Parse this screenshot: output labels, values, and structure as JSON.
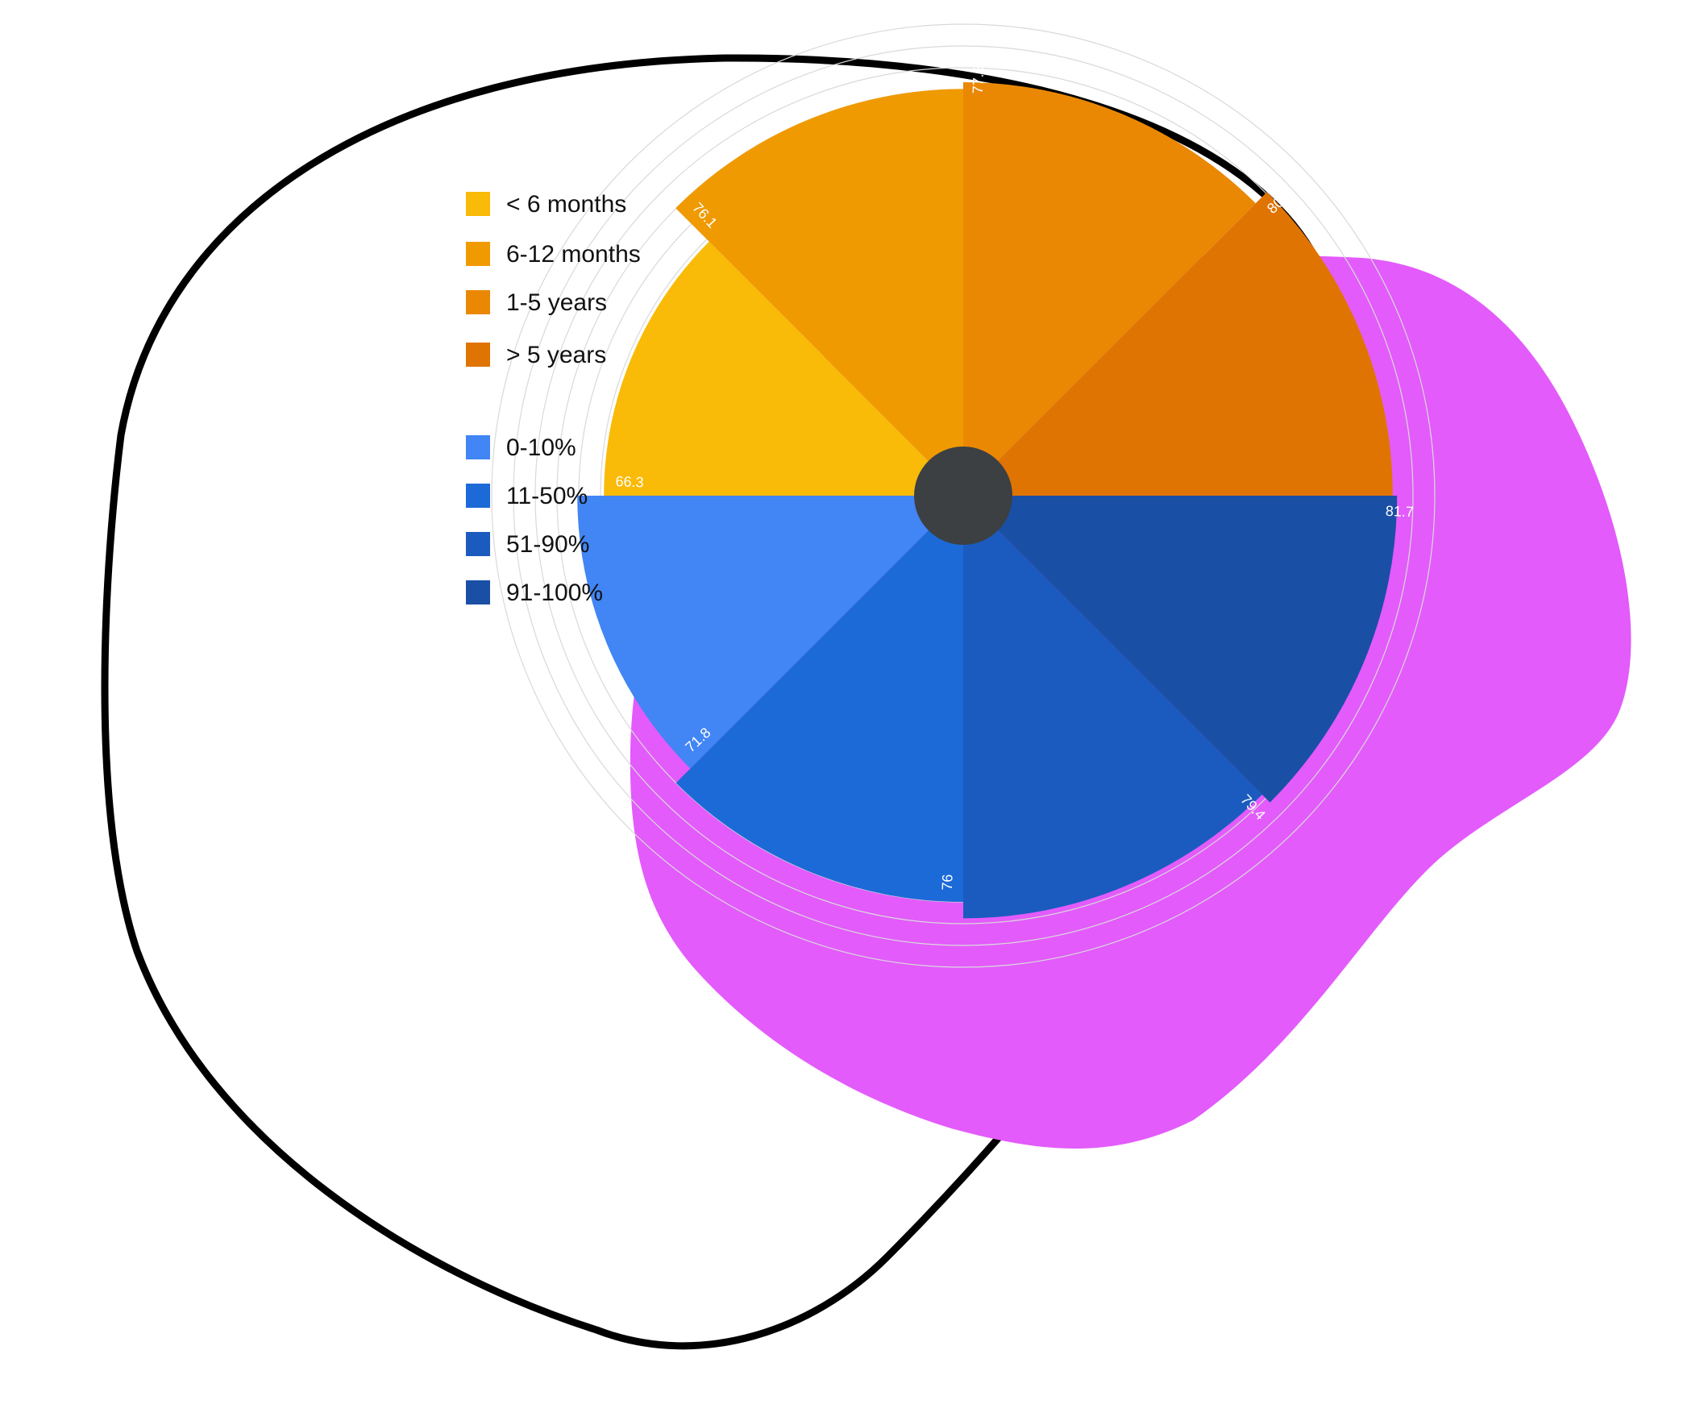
{
  "chart_data": {
    "type": "polar-area",
    "title": "",
    "groups": [
      {
        "name": "",
        "categories": [
          "< 6 months",
          "6-12 months",
          "1-5 years",
          "> 5 years"
        ],
        "values": [
          66.3,
          76.1,
          77.5,
          80.8
        ],
        "colors": [
          "#F9BA08",
          "#F09A02",
          "#EA8804",
          "#E07403"
        ]
      },
      {
        "name": "",
        "categories": [
          "0-10%",
          "11-50%",
          "51-90%",
          "91-100%"
        ],
        "values": [
          71.8,
          76,
          79.4,
          81.7
        ],
        "colors": [
          "#4285F4",
          "#1C6AD8",
          "#1B5BBF",
          "#1A4FA6"
        ]
      }
    ],
    "data_labels": [
      "66.3",
      "76.1",
      "77.5",
      "80.8",
      "71.8",
      "76",
      "79.4",
      "81.7"
    ],
    "legend_placement": "top-left",
    "grid": true
  },
  "colors": {
    "background": "#ffffff",
    "grid_ring": "#d9d9d9",
    "center_hub": "#3c4043",
    "blob_fill": "#E35BFB",
    "outline_stroke": "#000000"
  }
}
